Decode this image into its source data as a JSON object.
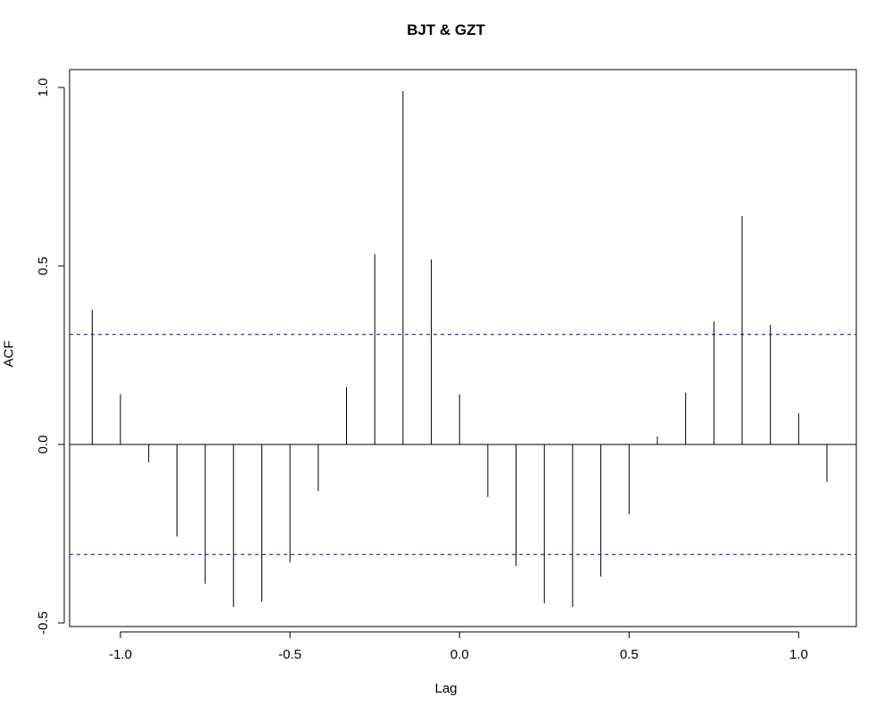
{
  "chart_data": {
    "type": "bar",
    "title": "BJT & GZT",
    "xlabel": "Lag",
    "ylabel": "ACF",
    "xlim": [
      -1.15,
      1.17
    ],
    "ylim": [
      -0.51,
      1.05
    ],
    "x_ticks": [
      -1.0,
      -0.5,
      0.0,
      0.5,
      1.0
    ],
    "x_tick_labels": [
      "-1.0",
      "-0.5",
      "0.0",
      "0.5",
      "1.0"
    ],
    "y_ticks": [
      -0.5,
      0.0,
      0.5,
      1.0
    ],
    "y_tick_labels": [
      "-0.5",
      "0.0",
      "0.5",
      "1.0"
    ],
    "confidence_bounds": [
      0.308,
      -0.308
    ],
    "lags": [
      -1.0833,
      -1.0,
      -0.9167,
      -0.8333,
      -0.75,
      -0.6667,
      -0.5833,
      -0.5,
      -0.4167,
      -0.3333,
      -0.25,
      -0.1667,
      -0.0833,
      0.0,
      0.0833,
      0.1667,
      0.25,
      0.3333,
      0.4167,
      0.5,
      0.5833,
      0.6667,
      0.75,
      0.8333,
      0.9167,
      1.0,
      1.0833
    ],
    "values": [
      0.377,
      0.141,
      -0.05,
      -0.258,
      -0.39,
      -0.455,
      -0.44,
      -0.33,
      -0.13,
      0.16,
      0.533,
      0.99,
      0.518,
      0.14,
      -0.147,
      -0.34,
      -0.445,
      -0.455,
      -0.37,
      -0.195,
      0.022,
      0.145,
      0.345,
      0.64,
      0.335,
      0.087,
      -0.105
    ],
    "colors": {
      "axis": "#000000",
      "bars": "#000000",
      "bounds": "#0000cc"
    }
  }
}
